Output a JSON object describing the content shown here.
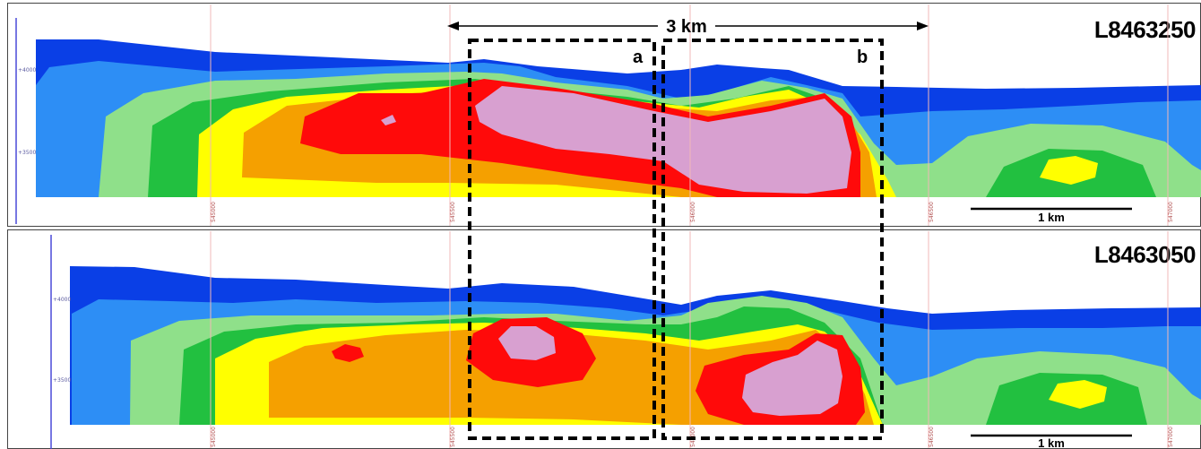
{
  "panels": [
    {
      "line_label": "L8463250",
      "elevation_ticks": [
        "+4000",
        "+3500"
      ],
      "easting_ticks": [
        "545000",
        "545500",
        "546000",
        "546500",
        "547000"
      ],
      "scale_bar_label": "1 km"
    },
    {
      "line_label": "L8463050",
      "elevation_ticks": [
        "+4000",
        "+3500"
      ],
      "easting_ticks": [
        "545000",
        "545500",
        "546000",
        "546500",
        "547000"
      ],
      "scale_bar_label": "1 km"
    }
  ],
  "dimension": {
    "label": "3 km"
  },
  "boxes": [
    {
      "label": "a"
    },
    {
      "label": "b"
    }
  ],
  "colors": {
    "dark_blue": "#0a3fe6",
    "blue": "#2d8ef5",
    "light_green": "#8fe08a",
    "green": "#22c040",
    "yellow": "#ffff00",
    "orange": "#f5a000",
    "red": "#ff0a0a",
    "pink": "#d8a0d0",
    "grid_line": "#f2b8b8",
    "axis_line": "#4a4ad8"
  }
}
